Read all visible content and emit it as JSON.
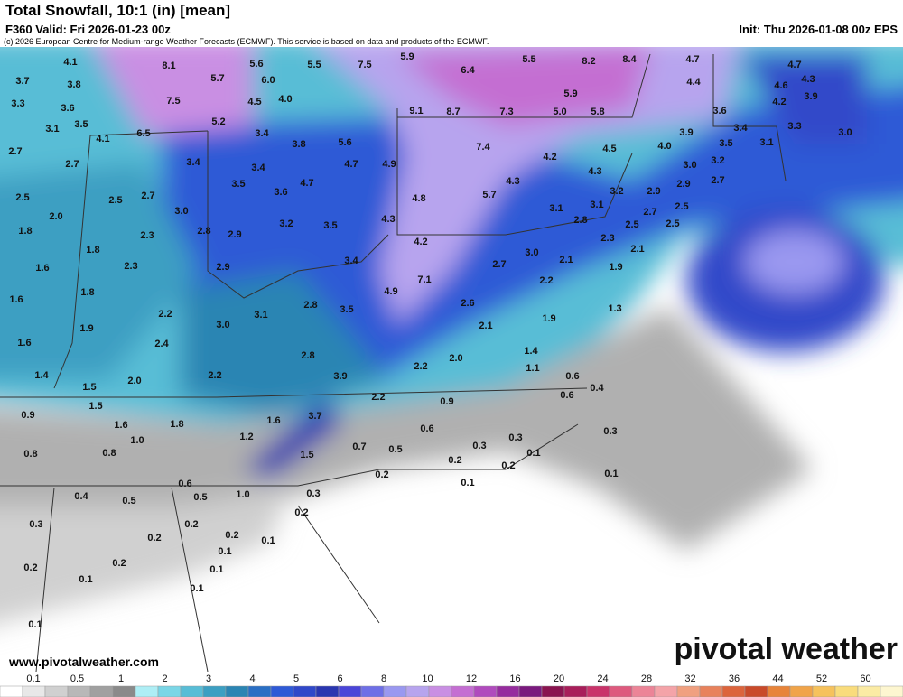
{
  "header": {
    "title": "Total Snowfall, 10:1 (in) [mean]",
    "valid": "F360 Valid: Fri 2026-01-23 00z",
    "init": "Init: Thu 2026-01-08 00z EPS",
    "credit": "(c) 2026 European Centre for Medium-range Weather Forecasts (ECMWF). This service is based on data and products of the ECMWF."
  },
  "footer": {
    "url": "www.pivotalweather.com",
    "logo": "pivotal weather"
  },
  "map": {
    "labels": [
      "4.1",
      "8.1",
      "5.6",
      "5.5",
      "7.5",
      "5.9",
      "6.4",
      "5.5",
      "8.2",
      "8.4",
      "4.7",
      "4.7",
      "3.7",
      "3.8",
      "5.7",
      "6.0",
      "5.9",
      "4.4",
      "4.6",
      "4.3",
      "3.3",
      "3.6",
      "7.5",
      "4.5",
      "4.0",
      "9.1",
      "8.7",
      "7.3",
      "5.0",
      "5.8",
      "4.2",
      "3.9",
      "3.1",
      "3.5",
      "6.5",
      "5.2",
      "3.4",
      "3.6",
      "3.9",
      "3.4",
      "3.3",
      "3.0",
      "4.1",
      "3.8",
      "5.6",
      "7.4",
      "4.5",
      "4.0",
      "3.5",
      "3.1",
      "2.7",
      "3.4",
      "3.4",
      "4.7",
      "4.9",
      "4.2",
      "4.3",
      "3.0",
      "3.2",
      "2.7",
      "3.5",
      "4.7",
      "4.3",
      "3.2",
      "2.9",
      "2.9",
      "2.7",
      "2.5",
      "2.5",
      "2.7",
      "3.6",
      "4.8",
      "5.7",
      "2.0",
      "3.0",
      "3.2",
      "3.5",
      "4.3",
      "3.1",
      "3.1",
      "2.7",
      "2.5",
      "2.8",
      "1.8",
      "2.3",
      "2.8",
      "2.9",
      "4.2",
      "2.5",
      "2.5",
      "2.3",
      "2.1",
      "1.8",
      "3.0",
      "3.4",
      "1.6",
      "2.3",
      "2.9",
      "2.7",
      "2.1",
      "1.9",
      "7.1",
      "2.2",
      "1.6",
      "1.8",
      "4.9",
      "2.6",
      "2.8",
      "3.5",
      "1.3",
      "2.2",
      "3.1",
      "1.9",
      "1.9",
      "3.0",
      "2.1",
      "1.6",
      "2.4",
      "2.8",
      "1.4",
      "2.0",
      "2.2",
      "1.1",
      "1.4",
      "2.2",
      "3.9",
      "0.6",
      "0.4",
      "1.5",
      "2.0",
      "2.2",
      "0.6",
      "0.9",
      "1.5",
      "0.9",
      "1.6",
      "1.8",
      "1.6",
      "3.7",
      "0.6",
      "0.3",
      "0.8",
      "0.8",
      "1.0",
      "1.2",
      "0.7",
      "0.5",
      "0.3",
      "0.3",
      "1.5",
      "0.1",
      "0.2",
      "0.2",
      "0.1",
      "0.2",
      "0.1",
      "0.6",
      "0.4",
      "0.5",
      "0.5",
      "1.0",
      "0.3",
      "0.2",
      "0.3",
      "0.2",
      "0.2",
      "0.1",
      "0.2",
      "0.1",
      "0.2",
      "0.2",
      "0.1",
      "0.1",
      "0.1",
      "0.1"
    ]
  },
  "legend": {
    "labels": [
      "0.1",
      "0.5",
      "1",
      "2",
      "3",
      "4",
      "5",
      "6",
      "8",
      "10",
      "12",
      "16",
      "20",
      "24",
      "28",
      "32",
      "36",
      "44",
      "52",
      "60"
    ],
    "colors": [
      "#ffffff",
      "#e8e8e8",
      "#d0d0d0",
      "#b8b8b8",
      "#a0a0a0",
      "#8a8a8a",
      "#aeeef5",
      "#7ad6e6",
      "#58bdd6",
      "#3c9fc2",
      "#2b85b3",
      "#2a6fc4",
      "#2f5ad6",
      "#3048c9",
      "#2a36b0",
      "#4a45d8",
      "#6e6fe6",
      "#9a98f0",
      "#b7a4ee",
      "#c98fe3",
      "#c46ed2",
      "#b04bbd",
      "#962c9e",
      "#7a1a7e",
      "#8a1450",
      "#a81e5a",
      "#c9336a",
      "#de5a7e",
      "#ec8497",
      "#f4a3a8",
      "#f0a080",
      "#e8825c",
      "#dc643c",
      "#c94a2a",
      "#e7843a",
      "#f0a44a",
      "#f6c25c",
      "#f9dc7c",
      "#fbeba4",
      "#fdf6d0"
    ]
  }
}
